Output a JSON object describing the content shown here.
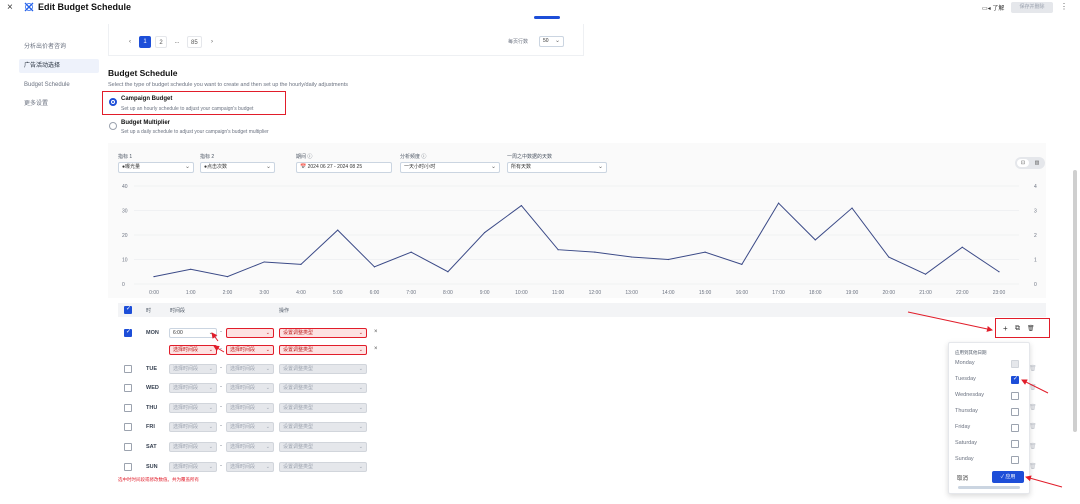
{
  "header": {
    "close": "×",
    "title": "Edit Budget Schedule",
    "help_label": "了解",
    "save_label": "保存并删除",
    "more": "⋮"
  },
  "sidebar": {
    "items": [
      {
        "label": "分析出价者咨询"
      },
      {
        "label": "广告活动选择"
      },
      {
        "label": "Budget Schedule"
      },
      {
        "label": "更多设置"
      }
    ]
  },
  "pagination": {
    "pages": [
      "1",
      "2",
      "...",
      "85"
    ],
    "prev": "‹",
    "next": "›",
    "per_page_label": "每页行数",
    "per_page_value": "50"
  },
  "budget": {
    "title": "Budget Schedule",
    "description": "Select the type of budget schedule you want to create and then set up the hourly/daily adjustments",
    "options": [
      {
        "title": "Campaign Budget",
        "desc": "Set up an hourly schedule to adjust your campaign's budget"
      },
      {
        "title": "Budget Multiplier",
        "desc": "Set up a daily schedule to adjust your campaign's budget multiplier"
      }
    ]
  },
  "filters": [
    {
      "label": "指标 1",
      "value": "●曝光量"
    },
    {
      "label": "指标 2",
      "value": "●点击次数"
    },
    {
      "label": "期间 ⓘ",
      "value": "📅 2024 06 27 - 2024 08 25"
    },
    {
      "label": "分析频度 ⓘ",
      "value": "一天小时/小时"
    },
    {
      "label": "一周之中数据的天数",
      "value": "所有天数"
    }
  ],
  "toggle": {
    "left": "⊡",
    "right": "▥"
  },
  "chart_data": {
    "type": "line",
    "x": [
      "0:00",
      "1:00",
      "2:00",
      "3:00",
      "4:00",
      "5:00",
      "6:00",
      "7:00",
      "8:00",
      "9:00",
      "10:00",
      "11:00",
      "12:00",
      "13:00",
      "14:00",
      "15:00",
      "16:00",
      "17:00",
      "18:00",
      "19:00",
      "20:00",
      "21:00",
      "22:00",
      "23:00"
    ],
    "series": [
      {
        "values": [
          3,
          6,
          3,
          9,
          8,
          22,
          7,
          13,
          5,
          21,
          32,
          14,
          13,
          11,
          10,
          13,
          8,
          33,
          18,
          31,
          11,
          4,
          15,
          5
        ]
      }
    ],
    "y_left_ticks": [
      "40",
      "30",
      "20",
      "10",
      "0"
    ],
    "y_right_ticks": [
      "4",
      "3",
      "2",
      "1",
      "0"
    ],
    "ylim": [
      0,
      40
    ],
    "grid": true,
    "color": "#3b4a87"
  },
  "table": {
    "col_hours": "时",
    "col_range": "时间段",
    "col_action": "操作",
    "rows": [
      {
        "day": "MON",
        "start": "6:00",
        "end": "",
        "type": "设置调整类型",
        "checked": true
      },
      {
        "day": "",
        "start": "选择时间段",
        "end": "选择时间段",
        "type": "设置调整类型",
        "checked": false
      },
      {
        "day": "TUE",
        "start": "选择时间段",
        "end": "选择时间段",
        "type": "设置调整类型",
        "checked": false
      },
      {
        "day": "WED",
        "start": "选择时间段",
        "end": "选择时间段",
        "type": "设置调整类型",
        "checked": false
      },
      {
        "day": "THU",
        "start": "选择时间段",
        "end": "选择时间段",
        "type": "设置调整类型",
        "checked": false
      },
      {
        "day": "FRI",
        "start": "选择时间段",
        "end": "选择时间段",
        "type": "设置调整类型",
        "checked": false
      },
      {
        "day": "SAT",
        "start": "选择时间段",
        "end": "选择时间段",
        "type": "设置调整类型",
        "checked": false
      },
      {
        "day": "SUN",
        "start": "选择时间段",
        "end": "选择时间段",
        "type": "设置调整类型",
        "checked": false
      }
    ],
    "footer_note": "选中时时间段或修改数值。共为覆盖所有"
  },
  "row_actions": {
    "add": "+",
    "copy": "⧉",
    "delete": "🗑"
  },
  "popover": {
    "title": "应用到其他日期",
    "days": [
      {
        "label": "Monday",
        "state": "disabled"
      },
      {
        "label": "Tuesday",
        "state": "checked"
      },
      {
        "label": "Wednesday",
        "state": "unchecked"
      },
      {
        "label": "Thursday",
        "state": "unchecked"
      },
      {
        "label": "Friday",
        "state": "unchecked"
      },
      {
        "label": "Saturday",
        "state": "unchecked"
      },
      {
        "label": "Sunday",
        "state": "unchecked"
      }
    ],
    "cancel": "取消",
    "apply": "✓ 应用"
  }
}
